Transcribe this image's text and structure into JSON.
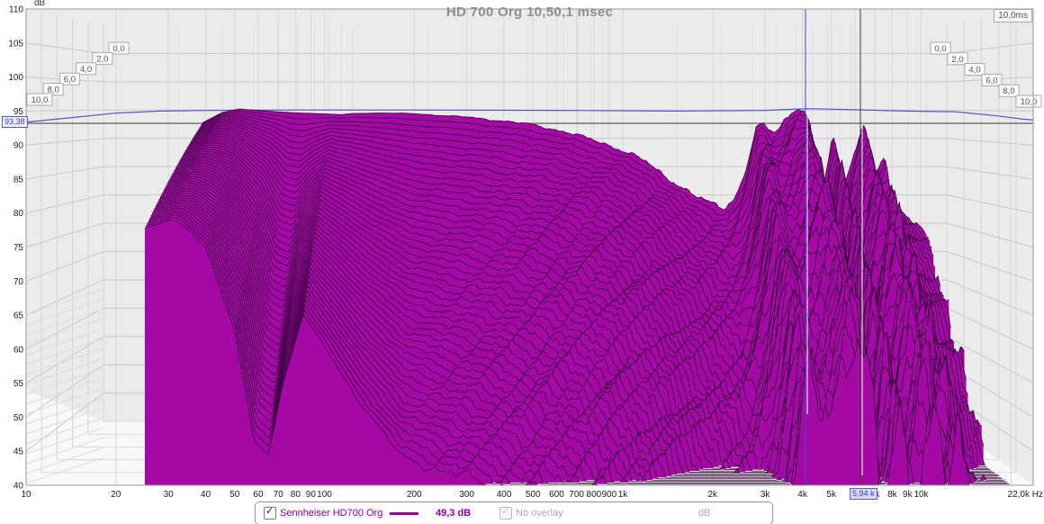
{
  "header": {
    "title": "HD 700 Org 10,50,1 msec",
    "y_axis_unit": "dB",
    "time_axis_end_label": "10,0ms"
  },
  "markers": {
    "db_cursor_value": "93,38",
    "freq_marker_value": "5,94 k"
  },
  "legend": {
    "trace_label": "Sennheiser HD700 Org",
    "trace_checked": true,
    "level_value": "49,3 dB",
    "overlay_label": "No overlay",
    "overlay_checked": true,
    "unit_label": "dB"
  },
  "colors": {
    "fill_magenta": "#A509A5",
    "slice_line": "#2d0433",
    "overlay_blue": "#5555cc",
    "cursor_blue": "#4747cf",
    "marker_black": "#3a3a3a",
    "cursor_white": "#ffffff",
    "grid": "#c9c9c9",
    "grid_light": "#d8d8d8",
    "plot_bg": "#ebebeb",
    "floor_bg": "#f8f8f8",
    "title_gray": "#8f8f8f",
    "legend_purple": "#8a00a8"
  },
  "axes": {
    "y_ticks": [
      110,
      105,
      100,
      95,
      90,
      85,
      80,
      75,
      70,
      65,
      60,
      55,
      50,
      45,
      40
    ],
    "x_ticks": [
      {
        "f": 10,
        "label": "10"
      },
      {
        "f": 20,
        "label": "20"
      },
      {
        "f": 30,
        "label": "30"
      },
      {
        "f": 40,
        "label": "40"
      },
      {
        "f": 50,
        "label": "50"
      },
      {
        "f": 60,
        "label": "60"
      },
      {
        "f": 70,
        "label": "70"
      },
      {
        "f": 80,
        "label": "80"
      },
      {
        "f": 90,
        "label": "90"
      },
      {
        "f": 100,
        "label": "100"
      },
      {
        "f": 200,
        "label": "200"
      },
      {
        "f": 300,
        "label": "300"
      },
      {
        "f": 400,
        "label": "400"
      },
      {
        "f": 500,
        "label": "500"
      },
      {
        "f": 600,
        "label": "600"
      },
      {
        "f": 700,
        "label": "700"
      },
      {
        "f": 800,
        "label": "800"
      },
      {
        "f": 900,
        "label": "900"
      },
      {
        "f": 1000,
        "label": "1k"
      },
      {
        "f": 2000,
        "label": "2k"
      },
      {
        "f": 3000,
        "label": "3k"
      },
      {
        "f": 4000,
        "label": "4k"
      },
      {
        "f": 5000,
        "label": "5k"
      },
      {
        "f": 7000,
        "label": "7k"
      },
      {
        "f": 8000,
        "label": "8k"
      },
      {
        "f": 9000,
        "label": "9k"
      },
      {
        "f": 10000,
        "label": "10k"
      },
      {
        "f": 22000,
        "label": "22,0k Hz"
      }
    ],
    "time_labels": [
      "0,0",
      "2,0",
      "4,0",
      "6,0",
      "8,0",
      "10,0"
    ]
  },
  "chart_data": {
    "type": "waterfall_csd",
    "title": "HD 700 Org 10,50,1 msec",
    "trace_name": "Sennheiser HD700 Org",
    "window_settings_msec": "10,50,1",
    "slices": 50,
    "time_range_ms": [
      0,
      10
    ],
    "db_range": [
      40,
      110
    ],
    "freq_axis_range_hz": [
      10,
      22000
    ],
    "data_freq_range_hz": [
      25,
      20000
    ],
    "cursor": {
      "freq_hz": 4100,
      "marker_freq_hz": 5940,
      "db_at_left_edge": 93.38,
      "floor_db": 49.3
    },
    "t0_response_db": [
      [
        25,
        92.8
      ],
      [
        30,
        94.6
      ],
      [
        35,
        95.2
      ],
      [
        40,
        95.0
      ],
      [
        50,
        94.7
      ],
      [
        60,
        94.5
      ],
      [
        70,
        94.4
      ],
      [
        80,
        94.3
      ],
      [
        90,
        94.2
      ],
      [
        100,
        94.4
      ],
      [
        130,
        94.5
      ],
      [
        170,
        94.4
      ],
      [
        220,
        94.1
      ],
      [
        300,
        93.7
      ],
      [
        360,
        93.3
      ],
      [
        450,
        92.8
      ],
      [
        550,
        92.3
      ],
      [
        700,
        91.2
      ],
      [
        800,
        90.5
      ],
      [
        900,
        89.9
      ],
      [
        1000,
        89.3
      ],
      [
        1200,
        87.9
      ],
      [
        1500,
        85.9
      ],
      [
        1900,
        82.6
      ],
      [
        2300,
        80.0
      ],
      [
        2700,
        78.6
      ],
      [
        3100,
        77.9
      ],
      [
        3400,
        79.5
      ],
      [
        3700,
        83.0
      ],
      [
        3900,
        87.0
      ],
      [
        4150,
        91.5
      ],
      [
        4400,
        92.5
      ],
      [
        4700,
        91.0
      ],
      [
        5100,
        92.0
      ],
      [
        5500,
        93.8
      ],
      [
        5900,
        95.0
      ],
      [
        6300,
        95.4
      ],
      [
        6700,
        93.2
      ],
      [
        7000,
        88.5
      ],
      [
        7400,
        77.5
      ],
      [
        7800,
        82.0
      ],
      [
        8400,
        91.0
      ],
      [
        8900,
        86.0
      ],
      [
        9300,
        81.5
      ],
      [
        9800,
        85.0
      ],
      [
        10300,
        88.0
      ],
      [
        10800,
        90.8
      ],
      [
        11200,
        92.0
      ],
      [
        11700,
        89.0
      ],
      [
        12200,
        81.0
      ],
      [
        12700,
        84.0
      ],
      [
        13500,
        86.5
      ],
      [
        14200,
        80.5
      ],
      [
        15000,
        79.0
      ],
      [
        16500,
        77.0
      ],
      [
        18000,
        75.0
      ],
      [
        20000,
        73.2
      ]
    ],
    "decay_rate_db_per_ms": [
      [
        25,
        1.5
      ],
      [
        32,
        1.6
      ],
      [
        40,
        2.0
      ],
      [
        50,
        3.2
      ],
      [
        58,
        4.8
      ],
      [
        65,
        5.0
      ],
      [
        72,
        4.0
      ],
      [
        85,
        2.9
      ],
      [
        100,
        3.4
      ],
      [
        130,
        4.2
      ],
      [
        180,
        5.0
      ],
      [
        250,
        5.2
      ],
      [
        350,
        5.3
      ],
      [
        500,
        5.4
      ],
      [
        700,
        5.3
      ],
      [
        1000,
        5.2
      ],
      [
        1500,
        5.3
      ],
      [
        2000,
        5.4
      ],
      [
        3000,
        5.2
      ],
      [
        3600,
        4.4
      ],
      [
        4100,
        3.5
      ],
      [
        4600,
        4.3
      ],
      [
        5200,
        3.9
      ],
      [
        5900,
        3.1
      ],
      [
        6500,
        3.4
      ],
      [
        7500,
        4.8
      ],
      [
        8500,
        4.1
      ],
      [
        9500,
        4.5
      ],
      [
        10700,
        3.9
      ],
      [
        12000,
        4.4
      ],
      [
        13500,
        4.2
      ],
      [
        16000,
        4.6
      ],
      [
        20000,
        4.8
      ]
    ],
    "noise_amp_db": [
      [
        80,
        0
      ],
      [
        150,
        0.4
      ],
      [
        300,
        1.2
      ],
      [
        700,
        2.6
      ],
      [
        1500,
        4.0
      ],
      [
        3000,
        5.5
      ],
      [
        6000,
        6.5
      ],
      [
        10000,
        7.5
      ],
      [
        20000,
        8.5
      ]
    ],
    "overlay_response_db": [
      [
        10,
        93.38
      ],
      [
        14,
        94.0
      ],
      [
        20,
        94.7
      ],
      [
        28,
        95.0
      ],
      [
        40,
        95.1
      ],
      [
        80,
        95.15
      ],
      [
        200,
        95.15
      ],
      [
        600,
        95.1
      ],
      [
        1500,
        95.0
      ],
      [
        3000,
        95.1
      ],
      [
        4200,
        95.35
      ],
      [
        6000,
        95.2
      ],
      [
        9000,
        95.0
      ],
      [
        13000,
        94.9
      ],
      [
        18000,
        94.3
      ],
      [
        22000,
        93.8
      ]
    ]
  }
}
